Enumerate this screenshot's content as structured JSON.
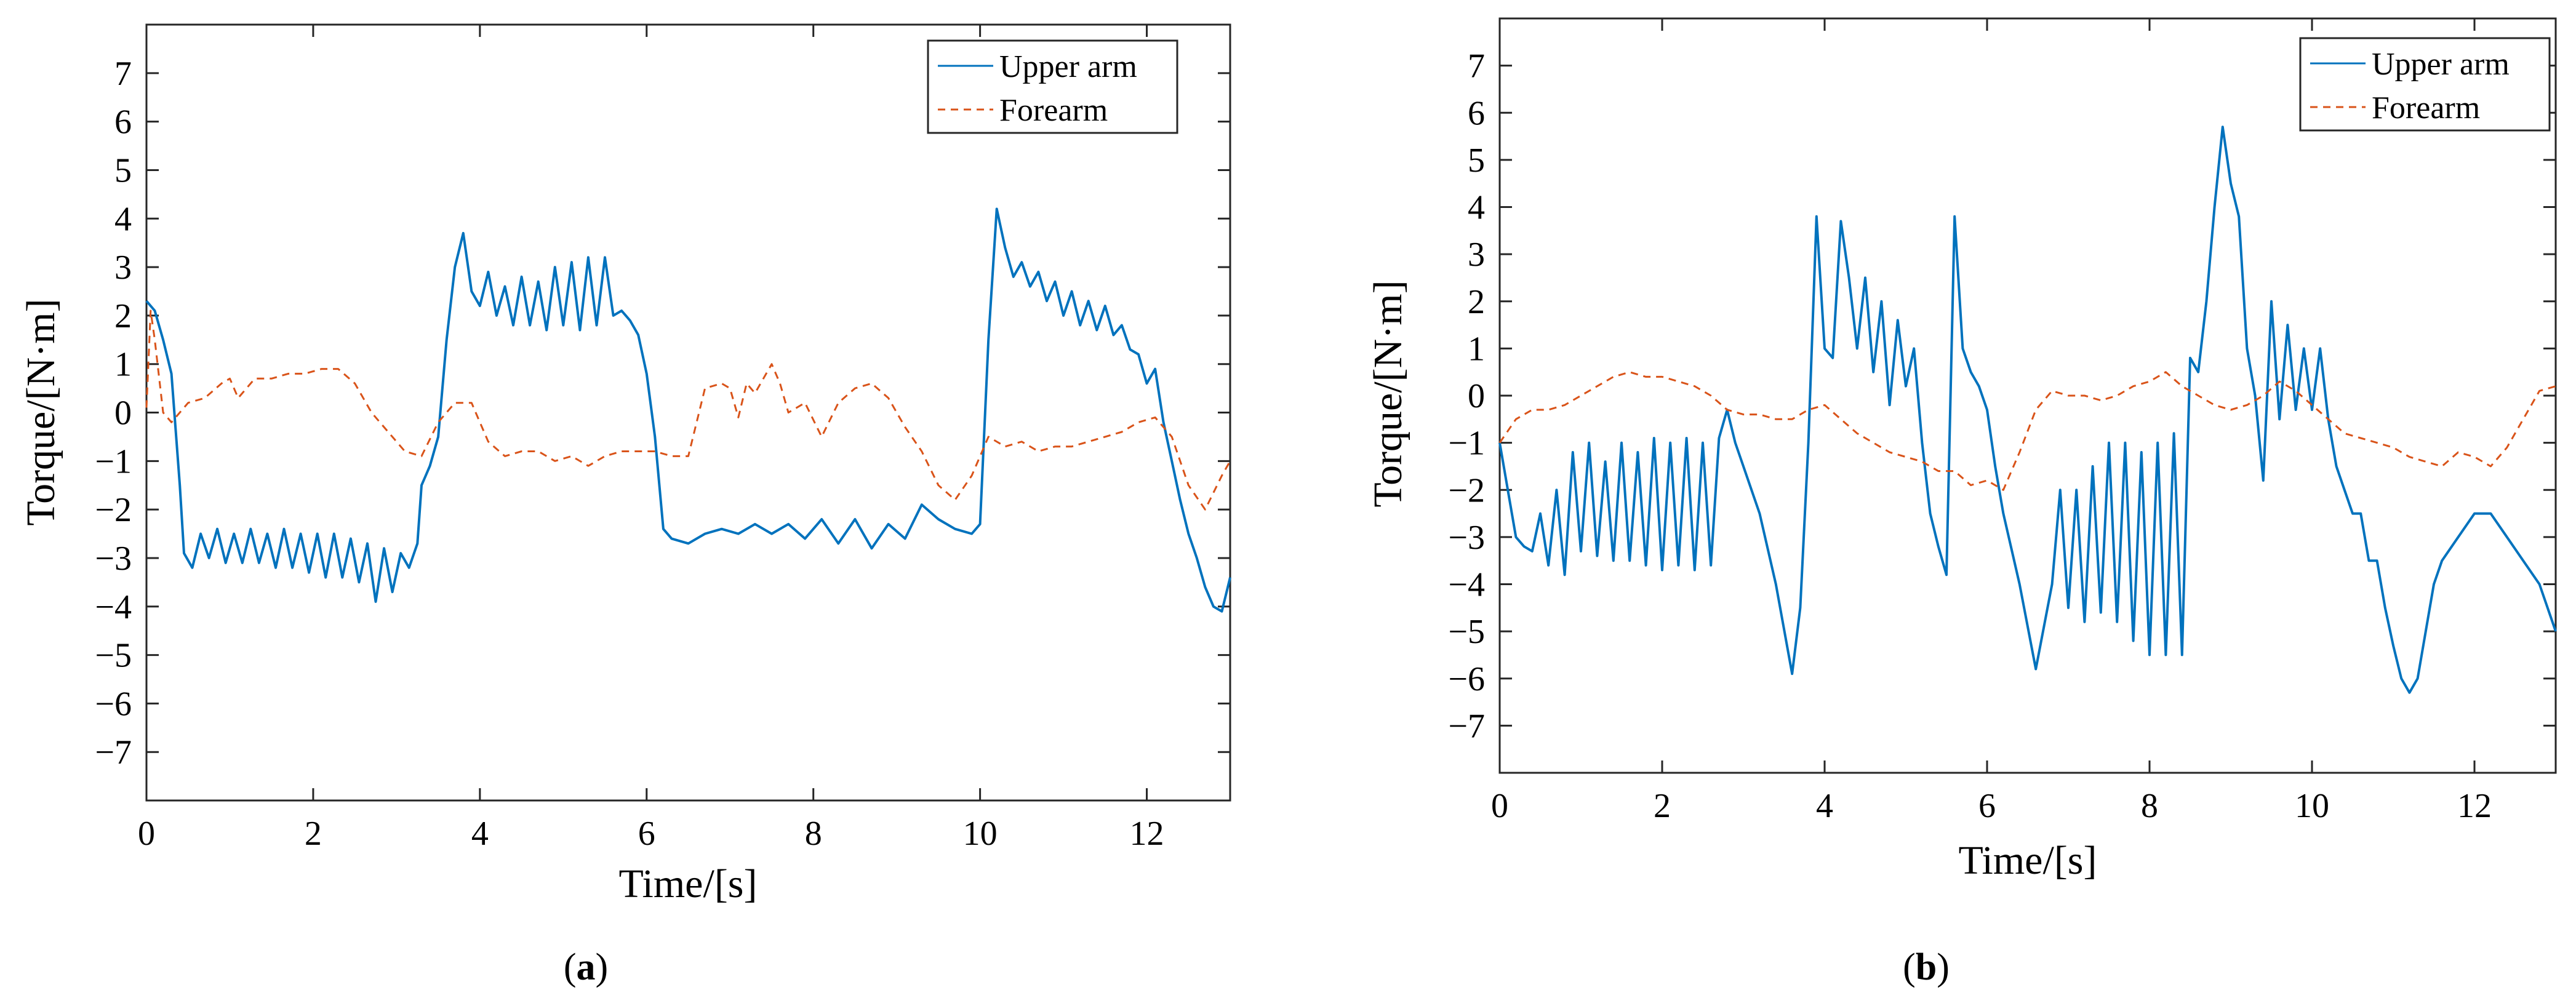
{
  "chart_data": [
    {
      "type": "line",
      "panel": "a",
      "caption_letter": "a",
      "caption_open": "(",
      "caption_close": ")",
      "xlabel": "Time/[s]",
      "ylabel": "Torque/[N·m]",
      "xlim": [
        0,
        13
      ],
      "ylim": [
        -8,
        8
      ],
      "xticks": [
        0,
        2,
        4,
        6,
        8,
        10,
        12
      ],
      "yticks": [
        -7,
        -6,
        -5,
        -4,
        -3,
        -2,
        -1,
        0,
        1,
        2,
        3,
        4,
        5,
        6,
        7
      ],
      "legend_position": "top-right",
      "series": [
        {
          "name": "Upper arm",
          "color": "#0072BD",
          "style": "solid",
          "x": [
            0,
            0.1,
            0.2,
            0.3,
            0.4,
            0.45,
            0.55,
            0.65,
            0.75,
            0.85,
            0.95,
            1.05,
            1.15,
            1.25,
            1.35,
            1.45,
            1.55,
            1.65,
            1.75,
            1.85,
            1.95,
            2.05,
            2.15,
            2.25,
            2.35,
            2.45,
            2.55,
            2.65,
            2.75,
            2.85,
            2.95,
            3.05,
            3.15,
            3.25,
            3.3,
            3.35,
            3.4,
            3.5,
            3.6,
            3.7,
            3.8,
            3.9,
            4.0,
            4.1,
            4.2,
            4.3,
            4.4,
            4.5,
            4.6,
            4.7,
            4.8,
            4.9,
            5.0,
            5.1,
            5.2,
            5.3,
            5.4,
            5.5,
            5.6,
            5.7,
            5.8,
            5.9,
            6.0,
            6.1,
            6.2,
            6.3,
            6.5,
            6.7,
            6.9,
            7.1,
            7.3,
            7.5,
            7.7,
            7.9,
            8.1,
            8.3,
            8.5,
            8.7,
            8.9,
            9.1,
            9.3,
            9.5,
            9.7,
            9.9,
            10.0,
            10.1,
            10.2,
            10.3,
            10.4,
            10.5,
            10.6,
            10.7,
            10.8,
            10.9,
            11.0,
            11.1,
            11.2,
            11.3,
            11.4,
            11.5,
            11.6,
            11.7,
            11.8,
            11.9,
            12.0,
            12.1,
            12.2,
            12.3,
            12.4,
            12.5,
            12.6,
            12.7,
            12.8,
            12.9,
            13.0
          ],
          "y": [
            2.3,
            2.1,
            1.5,
            0.8,
            -1.5,
            -2.9,
            -3.2,
            -2.5,
            -3.0,
            -2.4,
            -3.1,
            -2.5,
            -3.1,
            -2.4,
            -3.1,
            -2.5,
            -3.2,
            -2.4,
            -3.2,
            -2.5,
            -3.3,
            -2.5,
            -3.4,
            -2.5,
            -3.4,
            -2.6,
            -3.5,
            -2.7,
            -3.9,
            -2.8,
            -3.7,
            -2.9,
            -3.2,
            -2.7,
            -1.5,
            -1.3,
            -1.1,
            -0.5,
            1.5,
            3.0,
            3.7,
            2.5,
            2.2,
            2.9,
            2.0,
            2.6,
            1.8,
            2.8,
            1.8,
            2.7,
            1.7,
            3.0,
            1.8,
            3.1,
            1.7,
            3.2,
            1.8,
            3.2,
            2.0,
            2.1,
            1.9,
            1.6,
            0.8,
            -0.5,
            -2.4,
            -2.6,
            -2.7,
            -2.5,
            -2.4,
            -2.5,
            -2.3,
            -2.5,
            -2.3,
            -2.6,
            -2.2,
            -2.7,
            -2.2,
            -2.8,
            -2.3,
            -2.6,
            -1.9,
            -2.2,
            -2.4,
            -2.5,
            -2.3,
            1.5,
            4.2,
            3.4,
            2.8,
            3.1,
            2.6,
            2.9,
            2.3,
            2.7,
            2.0,
            2.5,
            1.8,
            2.3,
            1.7,
            2.2,
            1.6,
            1.8,
            1.3,
            1.2,
            0.6,
            0.9,
            -0.2,
            -1.0,
            -1.8,
            -2.5,
            -3.0,
            -3.6,
            -4.0,
            -4.1,
            -3.4
          ]
        },
        {
          "name": "Forearm",
          "color": "#D95319",
          "style": "dashed",
          "x": [
            0,
            0.05,
            0.1,
            0.2,
            0.3,
            0.5,
            0.7,
            0.9,
            1.0,
            1.1,
            1.3,
            1.5,
            1.7,
            1.9,
            2.1,
            2.3,
            2.5,
            2.7,
            2.9,
            3.1,
            3.3,
            3.5,
            3.7,
            3.9,
            4.0,
            4.1,
            4.3,
            4.5,
            4.7,
            4.9,
            5.1,
            5.3,
            5.5,
            5.7,
            5.9,
            6.1,
            6.3,
            6.5,
            6.7,
            6.9,
            7.0,
            7.1,
            7.2,
            7.3,
            7.5,
            7.6,
            7.7,
            7.9,
            8.1,
            8.3,
            8.5,
            8.7,
            8.9,
            9.1,
            9.3,
            9.5,
            9.7,
            9.9,
            10.1,
            10.3,
            10.5,
            10.7,
            10.9,
            11.1,
            11.3,
            11.5,
            11.7,
            11.9,
            12.1,
            12.3,
            12.5,
            12.7,
            12.9,
            13.0
          ],
          "y": [
            0.1,
            2.1,
            1.5,
            0.0,
            -0.2,
            0.2,
            0.3,
            0.6,
            0.7,
            0.3,
            0.7,
            0.7,
            0.8,
            0.8,
            0.9,
            0.9,
            0.6,
            0.0,
            -0.4,
            -0.8,
            -0.9,
            -0.2,
            0.2,
            0.2,
            -0.2,
            -0.6,
            -0.9,
            -0.8,
            -0.8,
            -1.0,
            -0.9,
            -1.1,
            -0.9,
            -0.8,
            -0.8,
            -0.8,
            -0.9,
            -0.9,
            0.5,
            0.6,
            0.5,
            -0.1,
            0.6,
            0.4,
            1.0,
            0.6,
            0.0,
            0.2,
            -0.5,
            0.2,
            0.5,
            0.6,
            0.3,
            -0.3,
            -0.8,
            -1.5,
            -1.8,
            -1.3,
            -0.5,
            -0.7,
            -0.6,
            -0.8,
            -0.7,
            -0.7,
            -0.6,
            -0.5,
            -0.4,
            -0.2,
            -0.1,
            -0.5,
            -1.5,
            -2.0,
            -1.3,
            -1.0
          ]
        }
      ]
    },
    {
      "type": "line",
      "panel": "b",
      "caption_letter": "b",
      "caption_open": "(",
      "caption_close": ")",
      "xlabel": "Time/[s]",
      "ylabel": "Torque/[N·m]",
      "xlim": [
        0,
        13
      ],
      "ylim": [
        -8,
        8
      ],
      "xticks": [
        0,
        2,
        4,
        6,
        8,
        10,
        12
      ],
      "yticks": [
        -7,
        -6,
        -5,
        -4,
        -3,
        -2,
        -1,
        0,
        1,
        2,
        3,
        4,
        5,
        6,
        7
      ],
      "legend_position": "top-right",
      "series": [
        {
          "name": "Upper arm",
          "color": "#0072BD",
          "style": "solid",
          "x": [
            0,
            0.1,
            0.2,
            0.3,
            0.4,
            0.5,
            0.6,
            0.7,
            0.8,
            0.9,
            1.0,
            1.1,
            1.2,
            1.3,
            1.4,
            1.5,
            1.6,
            1.7,
            1.8,
            1.9,
            2.0,
            2.1,
            2.2,
            2.3,
            2.4,
            2.5,
            2.6,
            2.7,
            2.8,
            2.9,
            3.0,
            3.2,
            3.4,
            3.6,
            3.7,
            3.8,
            3.9,
            4.0,
            4.1,
            4.2,
            4.3,
            4.4,
            4.5,
            4.6,
            4.7,
            4.8,
            4.9,
            5.0,
            5.1,
            5.2,
            5.3,
            5.4,
            5.5,
            5.6,
            5.7,
            5.8,
            5.9,
            6.0,
            6.1,
            6.2,
            6.4,
            6.6,
            6.8,
            6.9,
            7.0,
            7.1,
            7.2,
            7.3,
            7.4,
            7.5,
            7.6,
            7.7,
            7.8,
            7.9,
            8.0,
            8.1,
            8.2,
            8.3,
            8.4,
            8.5,
            8.6,
            8.7,
            8.8,
            8.9,
            9.0,
            9.1,
            9.2,
            9.3,
            9.4,
            9.5,
            9.6,
            9.7,
            9.8,
            9.9,
            10.0,
            10.1,
            10.2,
            10.3,
            10.4,
            10.5,
            10.6,
            10.7,
            10.8,
            10.9,
            11.0,
            11.1,
            11.2,
            11.3,
            11.4,
            11.5,
            11.6,
            11.8,
            12.0,
            12.2,
            12.4,
            12.6,
            12.8,
            13.0
          ],
          "y": [
            -1.0,
            -2.0,
            -3.0,
            -3.2,
            -3.3,
            -2.5,
            -3.6,
            -2.0,
            -3.8,
            -1.2,
            -3.3,
            -1.0,
            -3.4,
            -1.4,
            -3.5,
            -1.0,
            -3.5,
            -1.2,
            -3.6,
            -0.9,
            -3.7,
            -1.0,
            -3.6,
            -0.9,
            -3.7,
            -1.0,
            -3.6,
            -0.9,
            -0.3,
            -1.0,
            -1.5,
            -2.5,
            -4.0,
            -5.9,
            -4.5,
            -1.0,
            3.8,
            1.0,
            0.8,
            3.7,
            2.5,
            1.0,
            2.5,
            0.5,
            2.0,
            -0.2,
            1.6,
            0.2,
            1.0,
            -1.0,
            -2.5,
            -3.2,
            -3.8,
            3.8,
            1.0,
            0.5,
            0.2,
            -0.3,
            -1.5,
            -2.5,
            -4.0,
            -5.8,
            -4.0,
            -2.0,
            -4.5,
            -2.0,
            -4.8,
            -1.5,
            -4.6,
            -1.0,
            -4.8,
            -1.0,
            -5.2,
            -1.2,
            -5.5,
            -1.0,
            -5.5,
            -0.8,
            -5.5,
            0.8,
            0.5,
            2.0,
            4.0,
            5.7,
            4.5,
            3.8,
            1.0,
            0.0,
            -1.8,
            2.0,
            -0.5,
            1.5,
            -0.3,
            1.0,
            -0.3,
            1.0,
            -0.5,
            -1.5,
            -2.0,
            -2.5,
            -2.5,
            -3.5,
            -3.5,
            -4.5,
            -5.3,
            -6.0,
            -6.3,
            -6.0,
            -5.0,
            -4.0,
            -3.5,
            -3.0,
            -2.5,
            -2.5,
            -3.0,
            -3.5,
            -4.0,
            -5.0
          ]
        },
        {
          "name": "Forearm",
          "color": "#D95319",
          "style": "dashed",
          "x": [
            0,
            0.2,
            0.4,
            0.6,
            0.8,
            1.0,
            1.2,
            1.4,
            1.6,
            1.8,
            2.0,
            2.2,
            2.4,
            2.6,
            2.8,
            3.0,
            3.2,
            3.4,
            3.6,
            3.8,
            4.0,
            4.2,
            4.4,
            4.6,
            4.8,
            5.0,
            5.2,
            5.4,
            5.6,
            5.8,
            6.0,
            6.2,
            6.4,
            6.6,
            6.8,
            7.0,
            7.2,
            7.4,
            7.6,
            7.8,
            8.0,
            8.2,
            8.4,
            8.6,
            8.8,
            9.0,
            9.2,
            9.4,
            9.6,
            9.8,
            10.0,
            10.2,
            10.4,
            10.6,
            10.8,
            11.0,
            11.2,
            11.4,
            11.6,
            11.8,
            12.0,
            12.2,
            12.4,
            12.6,
            12.8,
            13.0
          ],
          "y": [
            -1.0,
            -0.5,
            -0.3,
            -0.3,
            -0.2,
            0.0,
            0.2,
            0.4,
            0.5,
            0.4,
            0.4,
            0.3,
            0.2,
            0.0,
            -0.3,
            -0.4,
            -0.4,
            -0.5,
            -0.5,
            -0.3,
            -0.2,
            -0.5,
            -0.8,
            -1.0,
            -1.2,
            -1.3,
            -1.4,
            -1.6,
            -1.6,
            -1.9,
            -1.8,
            -2.0,
            -1.2,
            -0.3,
            0.1,
            0.0,
            0.0,
            -0.1,
            0.0,
            0.2,
            0.3,
            0.5,
            0.2,
            0.0,
            -0.2,
            -0.3,
            -0.2,
            0.0,
            0.3,
            0.1,
            -0.2,
            -0.5,
            -0.8,
            -0.9,
            -1.0,
            -1.1,
            -1.3,
            -1.4,
            -1.5,
            -1.2,
            -1.3,
            -1.5,
            -1.1,
            -0.5,
            0.1,
            0.2
          ]
        }
      ]
    }
  ]
}
